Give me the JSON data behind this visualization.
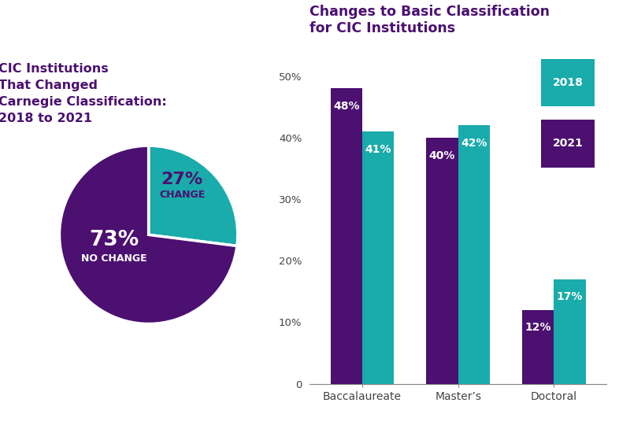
{
  "pie_title": "CIC Institutions\nThat Changed\nCarnegie Classification:\n2018 to 2021",
  "pie_values": [
    27,
    73
  ],
  "pie_colors": [
    "#1AABAB",
    "#4B1070"
  ],
  "bar_title": "Changes to Basic Classification\nfor CIC Institutions",
  "categories": [
    "Baccalaureate",
    "Master’s",
    "Doctoral"
  ],
  "values_2018": [
    48,
    40,
    12
  ],
  "values_2021": [
    41,
    42,
    17
  ],
  "color_2018": "#4B1070",
  "color_2021": "#1AABAB",
  "legend_2018": "2018",
  "legend_2021": "2021",
  "title_color": "#4B1070",
  "ytick_labels": [
    "0",
    "10%",
    "20%",
    "30%",
    "40%",
    "50%"
  ],
  "ytick_values": [
    0,
    10,
    20,
    30,
    40,
    50
  ],
  "ylim": [
    0,
    55
  ],
  "background_color": "#ffffff",
  "header_color": "#4B1070",
  "pie_label_27_color": "#4B1070",
  "pie_label_73_color": "#ffffff",
  "bar_label_color": "#ffffff"
}
